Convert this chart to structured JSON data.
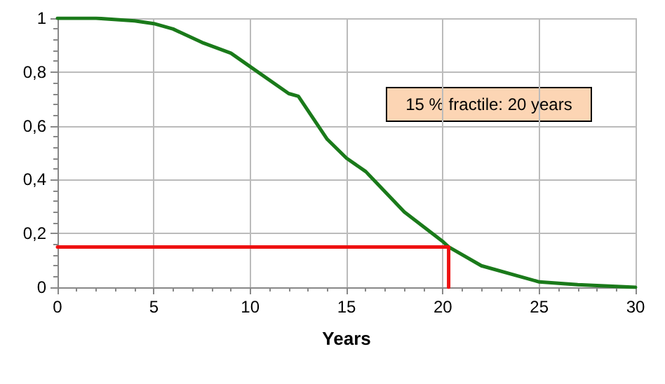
{
  "chart_data": {
    "type": "line",
    "xlabel": "Years",
    "annotations": [
      "15 % fractile: 20 years"
    ],
    "xlim": [
      0,
      30
    ],
    "xticks": [
      0,
      5,
      10,
      15,
      20,
      25,
      30
    ],
    "ylim": [
      0,
      1
    ],
    "yticks": [
      {
        "value": 0,
        "label": "0"
      },
      {
        "value": 0.2,
        "label": "0,2"
      },
      {
        "value": 0.4,
        "label": "0,4"
      },
      {
        "value": 0.6,
        "label": "0,6"
      },
      {
        "value": 0.8,
        "label": "0,8"
      },
      {
        "value": 1,
        "label": "1"
      }
    ],
    "grid": true,
    "marker": "none",
    "line_style": "solid",
    "series": [
      {
        "color": "#1a7a1a",
        "x": [
          0,
          2,
          4,
          5,
          6,
          7.5,
          9,
          10,
          12,
          12.5,
          14,
          15,
          16,
          18,
          20,
          20.3,
          22,
          24,
          25,
          27,
          30
        ],
        "values": [
          1,
          1,
          0.99,
          0.98,
          0.96,
          0.91,
          0.87,
          0.82,
          0.72,
          0.71,
          0.55,
          0.48,
          0.43,
          0.28,
          0.17,
          0.15,
          0.08,
          0.04,
          0.02,
          0.01,
          0
        ]
      },
      {
        "color": "#ee1111",
        "x": [
          0,
          20.3,
          20.3
        ],
        "values": [
          0.15,
          0.15,
          0
        ]
      }
    ]
  }
}
